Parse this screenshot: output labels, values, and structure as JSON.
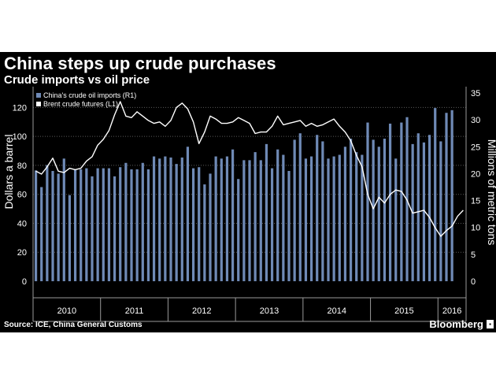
{
  "chart_data": {
    "type": "bar+line",
    "title": "China steps up crude purchases",
    "subtitle": "Crude imports vs oil price",
    "left_axis": {
      "label": "Dollars a barrel",
      "ylim": [
        0,
        130
      ],
      "ticks": [
        0,
        20,
        40,
        60,
        80,
        100,
        120
      ]
    },
    "right_axis": {
      "label": "Millions of metric tons",
      "ylim": [
        0,
        35
      ],
      "ticks": [
        0,
        5,
        10,
        15,
        20,
        25,
        30,
        35
      ]
    },
    "x_year_labels": [
      "2010",
      "2011",
      "2012",
      "2013",
      "2014",
      "2015",
      "2016"
    ],
    "months": [
      "2010-01",
      "2010-02",
      "2010-03",
      "2010-04",
      "2010-05",
      "2010-06",
      "2010-07",
      "2010-08",
      "2010-09",
      "2010-10",
      "2010-11",
      "2010-12",
      "2011-01",
      "2011-02",
      "2011-03",
      "2011-04",
      "2011-05",
      "2011-06",
      "2011-07",
      "2011-08",
      "2011-09",
      "2011-10",
      "2011-11",
      "2011-12",
      "2012-01",
      "2012-02",
      "2012-03",
      "2012-04",
      "2012-05",
      "2012-06",
      "2012-07",
      "2012-08",
      "2012-09",
      "2012-10",
      "2012-11",
      "2012-12",
      "2013-01",
      "2013-02",
      "2013-03",
      "2013-04",
      "2013-05",
      "2013-06",
      "2013-07",
      "2013-08",
      "2013-09",
      "2013-10",
      "2013-11",
      "2013-12",
      "2014-01",
      "2014-02",
      "2014-03",
      "2014-04",
      "2014-05",
      "2014-06",
      "2014-07",
      "2014-08",
      "2014-09",
      "2014-10",
      "2014-11",
      "2014-12",
      "2015-01",
      "2015-02",
      "2015-03",
      "2015-04",
      "2015-05",
      "2015-06",
      "2015-07",
      "2015-08",
      "2015-09",
      "2015-10",
      "2015-11",
      "2015-12",
      "2016-01",
      "2016-02",
      "2016-03",
      "2016-04",
      "2016-05"
    ],
    "series": [
      {
        "name": "China's crude oil imports (R1)",
        "kind": "bar",
        "axis": "right",
        "color": "#6f8ab6",
        "values": [
          20.6,
          17.5,
          21.6,
          20.5,
          20.0,
          22.8,
          16.0,
          20.8,
          20.8,
          21.0,
          19.5,
          21.0,
          21.0,
          21.0,
          19.5,
          21.2,
          22.0,
          20.8,
          20.8,
          22.0,
          20.8,
          23.2,
          22.8,
          23.2,
          23.0,
          21.8,
          23.0,
          25.0,
          21.0,
          21.2,
          18.0,
          20.0,
          23.2,
          22.8,
          23.2,
          24.5,
          19.0,
          22.5,
          22.5,
          24.0,
          22.5,
          25.5,
          21.0,
          24.5,
          23.5,
          20.5,
          26.3,
          27.5,
          22.8,
          23.2,
          27.2,
          26.0,
          22.8,
          23.2,
          23.5,
          25.0,
          26.5,
          24.0,
          23.5,
          29.5,
          26.3,
          25.0,
          26.5,
          29.3,
          22.8,
          29.5,
          30.5,
          25.5,
          27.5,
          25.8,
          27.2,
          32.2,
          26.0,
          31.3,
          31.8
        ]
      },
      {
        "name": "Brent crude futures (L1)",
        "kind": "line",
        "axis": "left",
        "color": "#ffffff",
        "values": [
          76,
          74,
          79,
          85,
          76,
          75,
          78,
          77,
          78,
          83,
          86,
          94,
          98,
          104,
          115,
          124,
          114,
          113,
          117,
          114,
          111,
          109,
          110,
          107,
          111,
          120,
          123,
          119,
          110,
          95,
          103,
          114,
          112,
          109,
          109,
          110,
          113,
          111,
          109,
          102,
          103,
          103,
          107,
          114,
          108,
          109,
          110,
          111,
          107,
          109,
          107,
          108,
          110,
          112,
          107,
          103,
          97,
          87,
          79,
          60,
          50,
          58,
          54,
          60,
          63,
          62,
          56,
          47,
          48,
          49,
          44,
          37,
          31,
          35,
          38,
          45,
          49
        ]
      }
    ],
    "legend": [
      "China's crude oil imports (R1)",
      "Brent crude futures (L1)"
    ]
  },
  "source": "Source: ICE, China General Customs",
  "brand": "Bloomberg"
}
